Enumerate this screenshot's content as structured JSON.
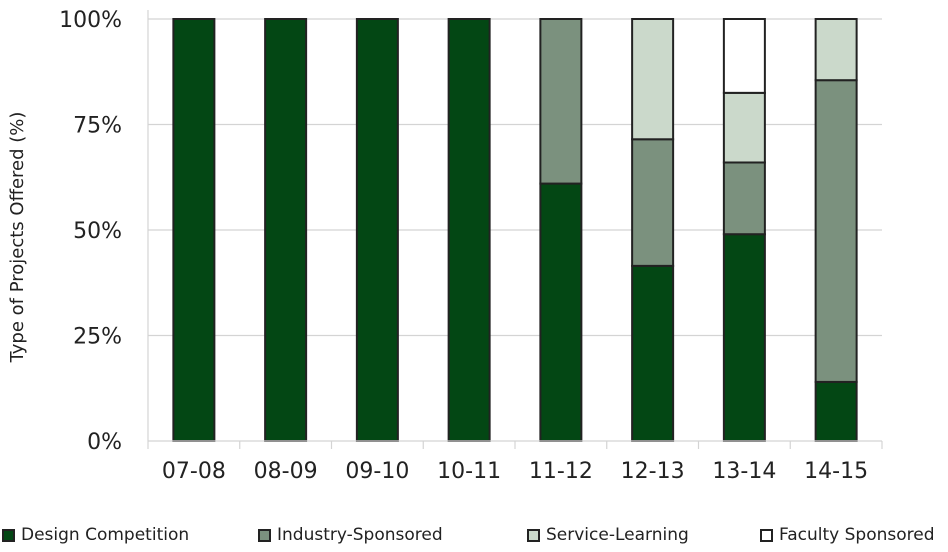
{
  "chart_data": {
    "type": "bar",
    "stacked": true,
    "categories": [
      "07-08",
      "08-09",
      "09-10",
      "10-11",
      "11-12",
      "12-13",
      "13-14",
      "14-15"
    ],
    "series": [
      {
        "name": "Design Competition",
        "color": "#034714",
        "values": [
          100,
          100,
          100,
          100,
          61,
          41.5,
          49,
          14
        ]
      },
      {
        "name": "Industry-Sponsored",
        "color": "#7b917e",
        "values": [
          0,
          0,
          0,
          0,
          39,
          30,
          17,
          71.5
        ]
      },
      {
        "name": "Service-Learning",
        "color": "#cbd9cb",
        "values": [
          0,
          0,
          0,
          0,
          0,
          28.5,
          16.5,
          14.5
        ]
      },
      {
        "name": "Faculty Sponsored",
        "color": "#ffffff",
        "values": [
          0,
          0,
          0,
          0,
          0,
          0,
          17.5,
          0
        ]
      }
    ],
    "yticks": [
      "0%",
      "25%",
      "50%",
      "75%",
      "100%"
    ],
    "ytick_values": [
      0,
      25,
      50,
      75,
      100
    ],
    "ylim": [
      0,
      100
    ],
    "xlabel": "",
    "ylabel": "Type of Projects Offered (%)",
    "grid": true,
    "legend_position": "bottom"
  }
}
